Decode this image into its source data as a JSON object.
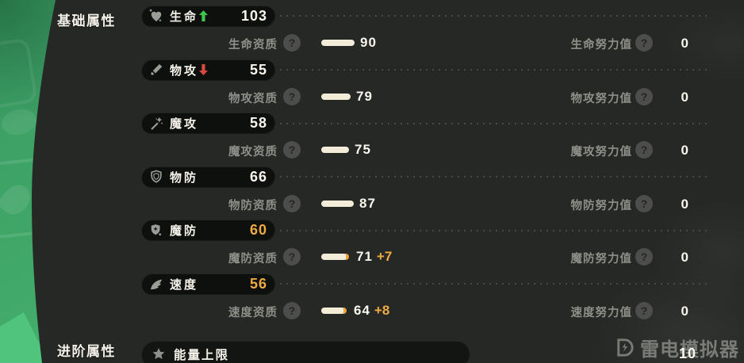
{
  "sections": {
    "basic_label": "基础属性",
    "advanced_label": "进阶属性"
  },
  "help_glyph": "?",
  "stats": [
    {
      "name": "生命",
      "value": "103",
      "trend": "up",
      "icon": "heart-icon",
      "apt_label": "生命资质",
      "apt_value": "90",
      "apt_bonus": "",
      "effort_label": "生命努力值",
      "effort_value": "0"
    },
    {
      "name": "物攻",
      "value": "55",
      "trend": "down",
      "icon": "sword-icon",
      "apt_label": "物攻资质",
      "apt_value": "79",
      "apt_bonus": "",
      "effort_label": "物攻努力值",
      "effort_value": "0"
    },
    {
      "name": "魔攻",
      "value": "58",
      "trend": "",
      "icon": "wand-icon",
      "apt_label": "魔攻资质",
      "apt_value": "75",
      "apt_bonus": "",
      "effort_label": "魔攻努力值",
      "effort_value": "0"
    },
    {
      "name": "物防",
      "value": "66",
      "trend": "",
      "icon": "shield-icon",
      "apt_label": "物防资质",
      "apt_value": "87",
      "apt_bonus": "",
      "effort_label": "物防努力值",
      "effort_value": "0"
    },
    {
      "name": "魔防",
      "value": "60",
      "trend": "",
      "icon": "magic-shield-icon",
      "apt_label": "魔防资质",
      "apt_value": "71",
      "apt_bonus": "+7",
      "effort_label": "魔防努力值",
      "effort_value": "0"
    },
    {
      "name": "速度",
      "value": "56",
      "trend": "",
      "icon": "speed-wing-icon",
      "apt_label": "速度资质",
      "apt_value": "64",
      "apt_bonus": "+8",
      "effort_label": "速度努力值",
      "effort_value": "0"
    }
  ],
  "advanced": {
    "name": "能量上限",
    "icon": "star-icon",
    "value": "10"
  },
  "watermark": {
    "text": "雷电模拟器",
    "icon": "ldplayer-logo"
  },
  "colors": {
    "bg_green": "#43ae6c",
    "panel": "#262825",
    "pill": "#0e100e",
    "accent_orange": "#f0ab41",
    "trend_up_green": "#3ec64b",
    "trend_down_red": "#d8493f",
    "bar_cream": "#f2ecd9",
    "label_gray": "#8f8f89"
  }
}
